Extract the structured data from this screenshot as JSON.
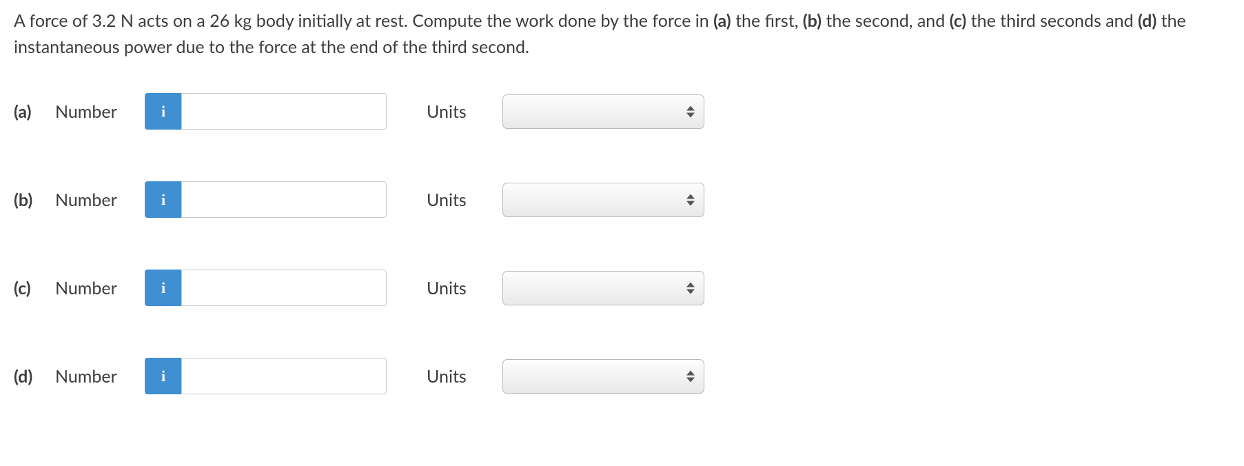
{
  "question": {
    "text_parts": [
      "A force of 3.2 N acts on a 26 kg body initially at rest. Compute the work done by the force in ",
      " the first, ",
      " the second, and ",
      " the third seconds and ",
      " the instantaneous power due to the force at the end of the third second."
    ],
    "bold_parts": [
      "(a)",
      "(b)",
      "(c)",
      "(d)"
    ]
  },
  "labels": {
    "number": "Number",
    "units": "Units",
    "info": "i"
  },
  "rows": [
    {
      "part": "(a)",
      "number_value": "",
      "units_value": ""
    },
    {
      "part": "(b)",
      "number_value": "",
      "units_value": ""
    },
    {
      "part": "(c)",
      "number_value": "",
      "units_value": ""
    },
    {
      "part": "(d)",
      "number_value": "",
      "units_value": ""
    }
  ],
  "colors": {
    "info_button_bg": "#3f8fd2",
    "text_color": "#3d3d3d",
    "input_border": "#cccccc",
    "select_border": "#b8b8b8",
    "select_gradient_top": "#fdfdfd",
    "select_gradient_bottom": "#e9e9e9"
  }
}
